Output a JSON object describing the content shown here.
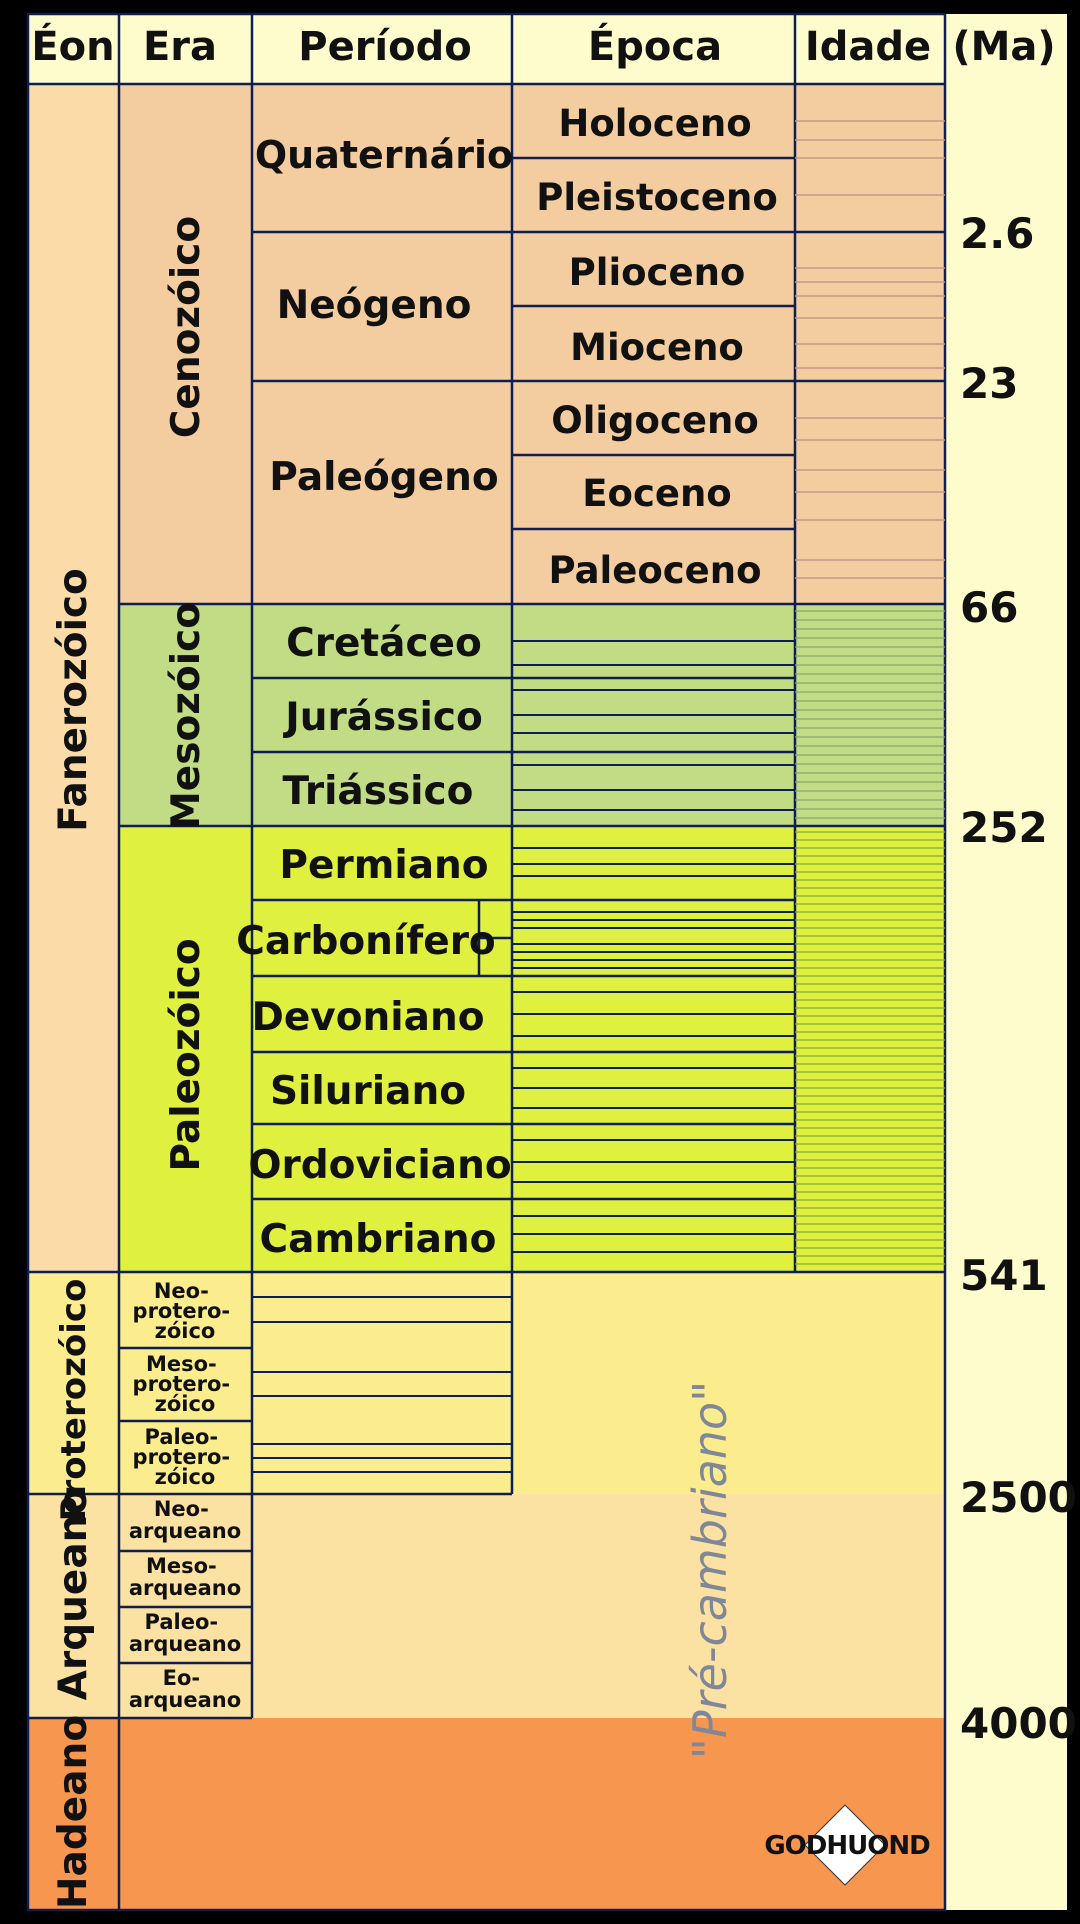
{
  "headers": {
    "eon": "Éon",
    "era": "Era",
    "period": "Período",
    "epoch": "Época",
    "age": "Idade",
    "ma": "(Ma)"
  },
  "eons": {
    "fanerozoico": "Fanerozóico",
    "proterozoico": "Proterozóico",
    "arqueano": "Arqueano",
    "hadeano": "Hadeano"
  },
  "eras": {
    "cenozoico": "Cenozóico",
    "mesozoico": "Mesozóico",
    "paleozoico": "Paleozóico",
    "neoproterozoico": [
      "Neo-",
      "protero-",
      "zóico"
    ],
    "mesoproterozoico": [
      "Meso-",
      "protero-",
      "zóico"
    ],
    "paleoproterozoico": [
      "Paleo-",
      "protero-",
      "zóico"
    ],
    "neoarqueano": [
      "Neo-",
      "arqueano"
    ],
    "mesoarqueano": [
      "Meso-",
      "arqueano"
    ],
    "paleoarqueano": [
      "Paleo-",
      "arqueano"
    ],
    "eoarqueano": [
      "Eo-",
      "arqueano"
    ]
  },
  "periods": {
    "quaternario": "Quaternário",
    "neogeno": "Neógeno",
    "paleogeno": "Paleógeno",
    "cretaceo": "Cretáceo",
    "jurassico": "Jurássico",
    "triassico": "Triássico",
    "permiano": "Permiano",
    "carbonifero": "Carbonífero",
    "devoniano": "Devoniano",
    "siluriano": "Siluriano",
    "ordoviciano": "Ordoviciano",
    "cambriano": "Cambriano"
  },
  "epochs": {
    "holoceno": "Holoceno",
    "pleistoceno": "Pleistoceno",
    "plioceno": "Plioceno",
    "mioceno": "Mioceno",
    "oligoceno": "Oligoceno",
    "eoceno": "Eoceno",
    "paleoceno": "Paleoceno"
  },
  "ages_ma": {
    "a1": "2.6",
    "a2": "23",
    "a3": "66",
    "a4": "252",
    "a5": "541",
    "a6": "2500",
    "a7": "4000"
  },
  "precambrian_label": "\"Pré-cambriano\"",
  "logo_text": "GODHUOND",
  "colors": {
    "cenozoic": "#f3cd9f",
    "mesozoic": "#c1dc85",
    "paleozoic": "#dff03f",
    "proterozoic": "#fbed8e",
    "archean": "#fbe2a2",
    "hadean": "#f7964f",
    "fanerozoic": "#fbdba8",
    "right_strip": "#fefbcc",
    "header": "#fefbcc",
    "line": "#0f1e50"
  }
}
